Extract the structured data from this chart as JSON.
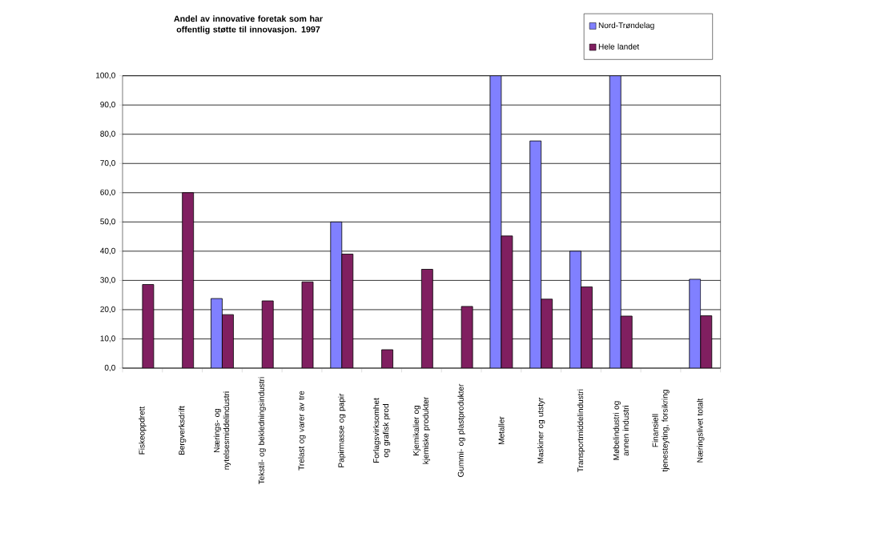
{
  "chart_data": {
    "type": "bar",
    "title": "Andel av innovative foretak som har offentlig støtte til innovasjon. 1997",
    "categories": [
      "Fiskeoppdrett",
      "Bergverksdrift",
      "Nærings- og nytelsesmiddelindustri",
      "Tekstil- og bekledningsindustri",
      "Trelast og varer av tre",
      "Papirmasse og papir",
      "Forlagsvirksomhet og grafisk prod",
      "Kjemikalier og kjemiske produkter",
      "Gummi- og plastprodukter",
      "Metaller",
      "Maskiner og utstyr",
      "Transportmiddelindustri",
      "Møbelindustri og annen industri",
      "Finansiell tjenesteyting, forsikring",
      "Næringslivet totalt"
    ],
    "series": [
      {
        "name": "Nord-Trøndelag",
        "color": "#8080ff",
        "values": [
          null,
          null,
          23.8,
          null,
          null,
          50,
          null,
          null,
          null,
          100,
          77.7,
          40,
          100,
          null,
          30.4
        ]
      },
      {
        "name": "Hele landet",
        "color": "#801f60",
        "values": [
          28.6,
          60,
          18.3,
          23,
          29.5,
          39,
          6.3,
          33.8,
          21.1,
          45.2,
          23.6,
          27.8,
          17.8,
          null,
          17.9
        ]
      }
    ],
    "ylim": [
      0,
      100
    ],
    "yticks": [
      {
        "value": 0,
        "label": "0,0"
      },
      {
        "value": 10,
        "label": "10,0"
      },
      {
        "value": 20,
        "label": "20,0"
      },
      {
        "value": 30,
        "label": "30,0"
      },
      {
        "value": 40,
        "label": "40,0"
      },
      {
        "value": 50,
        "label": "50,0"
      },
      {
        "value": 60,
        "label": "60,0"
      },
      {
        "value": 70,
        "label": "70,0"
      },
      {
        "value": 80,
        "label": "80,0"
      },
      {
        "value": 90,
        "label": "90,0"
      },
      {
        "value": 100,
        "label": "100,0"
      }
    ],
    "grid": "y",
    "legend": "top right"
  }
}
